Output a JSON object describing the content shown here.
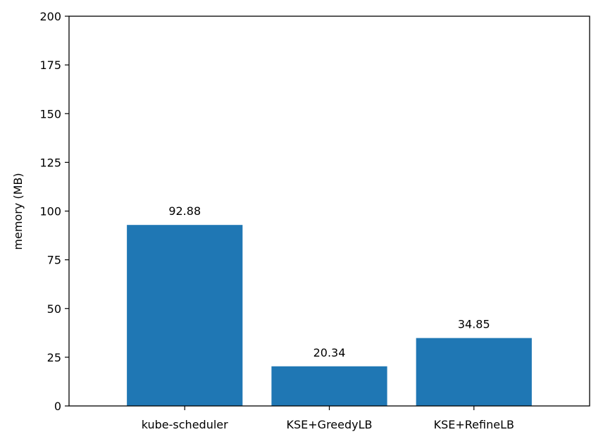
{
  "chart_data": {
    "type": "bar",
    "title": "",
    "xlabel": "",
    "ylabel": "memory (MB)",
    "categories": [
      "kube-scheduler",
      "KSE+GreedyLB",
      "KSE+RefineLB"
    ],
    "values": [
      92.88,
      20.34,
      34.85
    ],
    "data_labels": [
      "92.88",
      "20.34",
      "34.85"
    ],
    "ylim": [
      0,
      200
    ],
    "yticks": [
      0,
      25,
      50,
      75,
      100,
      125,
      150,
      175,
      200
    ],
    "grid": false,
    "legend": "none",
    "colors": {
      "bar": "#1f77b4",
      "axis": "#000000"
    }
  }
}
